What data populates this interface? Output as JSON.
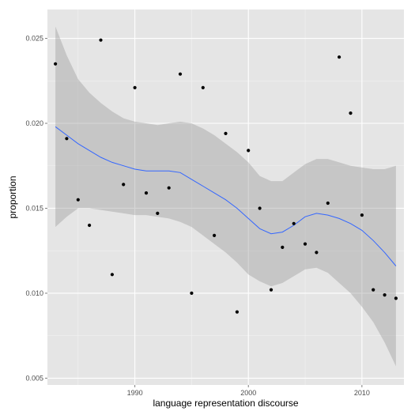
{
  "chart_data": {
    "type": "scatter",
    "xlabel": "language representation discourse",
    "ylabel": "proportion",
    "xlim": [
      1982.3,
      2013.7
    ],
    "ylim": [
      0.0046,
      0.0267
    ],
    "x_ticks": [
      1990,
      2000,
      2010
    ],
    "x_tick_labels": [
      "1990",
      "2000",
      "2010"
    ],
    "y_ticks": [
      0.005,
      0.01,
      0.015,
      0.02,
      0.025
    ],
    "y_tick_labels": [
      "0.005",
      "0.010",
      "0.015",
      "0.020",
      "0.025"
    ],
    "grid": true,
    "legend": "none",
    "colors": {
      "panel_background": "#e5e5e5",
      "grid_major": "#ffffff",
      "grid_minor": "#f2f2f2",
      "points": "#000000",
      "smooth_line": "#3366ff",
      "confidence_band": "#999999"
    },
    "points": {
      "x": [
        1983,
        1984,
        1985,
        1986,
        1987,
        1988,
        1989,
        1990,
        1991,
        1992,
        1993,
        1994,
        1995,
        1996,
        1997,
        1998,
        1999,
        2000,
        2001,
        2002,
        2003,
        2004,
        2005,
        2006,
        2007,
        2008,
        2009,
        2010,
        2011,
        2012,
        2013
      ],
      "y": [
        0.0235,
        0.0191,
        0.0155,
        0.014,
        0.0249,
        0.0111,
        0.0164,
        0.0221,
        0.0159,
        0.0147,
        0.0162,
        0.0229,
        0.01,
        0.0221,
        0.0134,
        0.0194,
        0.0089,
        0.0184,
        0.015,
        0.0102,
        0.0127,
        0.0141,
        0.0129,
        0.0124,
        0.0153,
        0.0239,
        0.0206,
        0.0146,
        0.0102,
        0.0099,
        0.0097
      ]
    },
    "smooth": {
      "x": [
        1983,
        1984,
        1985,
        1986,
        1987,
        1988,
        1989,
        1990,
        1991,
        1992,
        1993,
        1994,
        1995,
        1996,
        1997,
        1998,
        1999,
        2000,
        2001,
        2002,
        2003,
        2004,
        2005,
        2006,
        2007,
        2008,
        2009,
        2010,
        2011,
        2012,
        2013
      ],
      "y": [
        0.0198,
        0.0193,
        0.0188,
        0.0184,
        0.018,
        0.0177,
        0.0175,
        0.0173,
        0.0172,
        0.0172,
        0.0172,
        0.0171,
        0.0167,
        0.0163,
        0.0159,
        0.0155,
        0.015,
        0.0144,
        0.0138,
        0.0135,
        0.0136,
        0.014,
        0.0145,
        0.0147,
        0.0146,
        0.0144,
        0.0141,
        0.0137,
        0.0131,
        0.0124,
        0.0116
      ],
      "lower": [
        0.0139,
        0.0145,
        0.015,
        0.015,
        0.0149,
        0.0148,
        0.0147,
        0.0146,
        0.0146,
        0.0145,
        0.0144,
        0.0142,
        0.0139,
        0.0134,
        0.0129,
        0.0124,
        0.0118,
        0.0111,
        0.0107,
        0.0104,
        0.0106,
        0.011,
        0.0114,
        0.0115,
        0.0112,
        0.0106,
        0.01,
        0.0092,
        0.0083,
        0.0071,
        0.0057
      ],
      "upper": [
        0.0257,
        0.024,
        0.0226,
        0.0218,
        0.0212,
        0.0207,
        0.0203,
        0.0201,
        0.02,
        0.0199,
        0.02,
        0.0201,
        0.02,
        0.0197,
        0.0193,
        0.0188,
        0.0183,
        0.0177,
        0.0169,
        0.0166,
        0.0166,
        0.0171,
        0.0176,
        0.0179,
        0.0179,
        0.0177,
        0.0175,
        0.0174,
        0.0173,
        0.0173,
        0.0175
      ]
    }
  }
}
